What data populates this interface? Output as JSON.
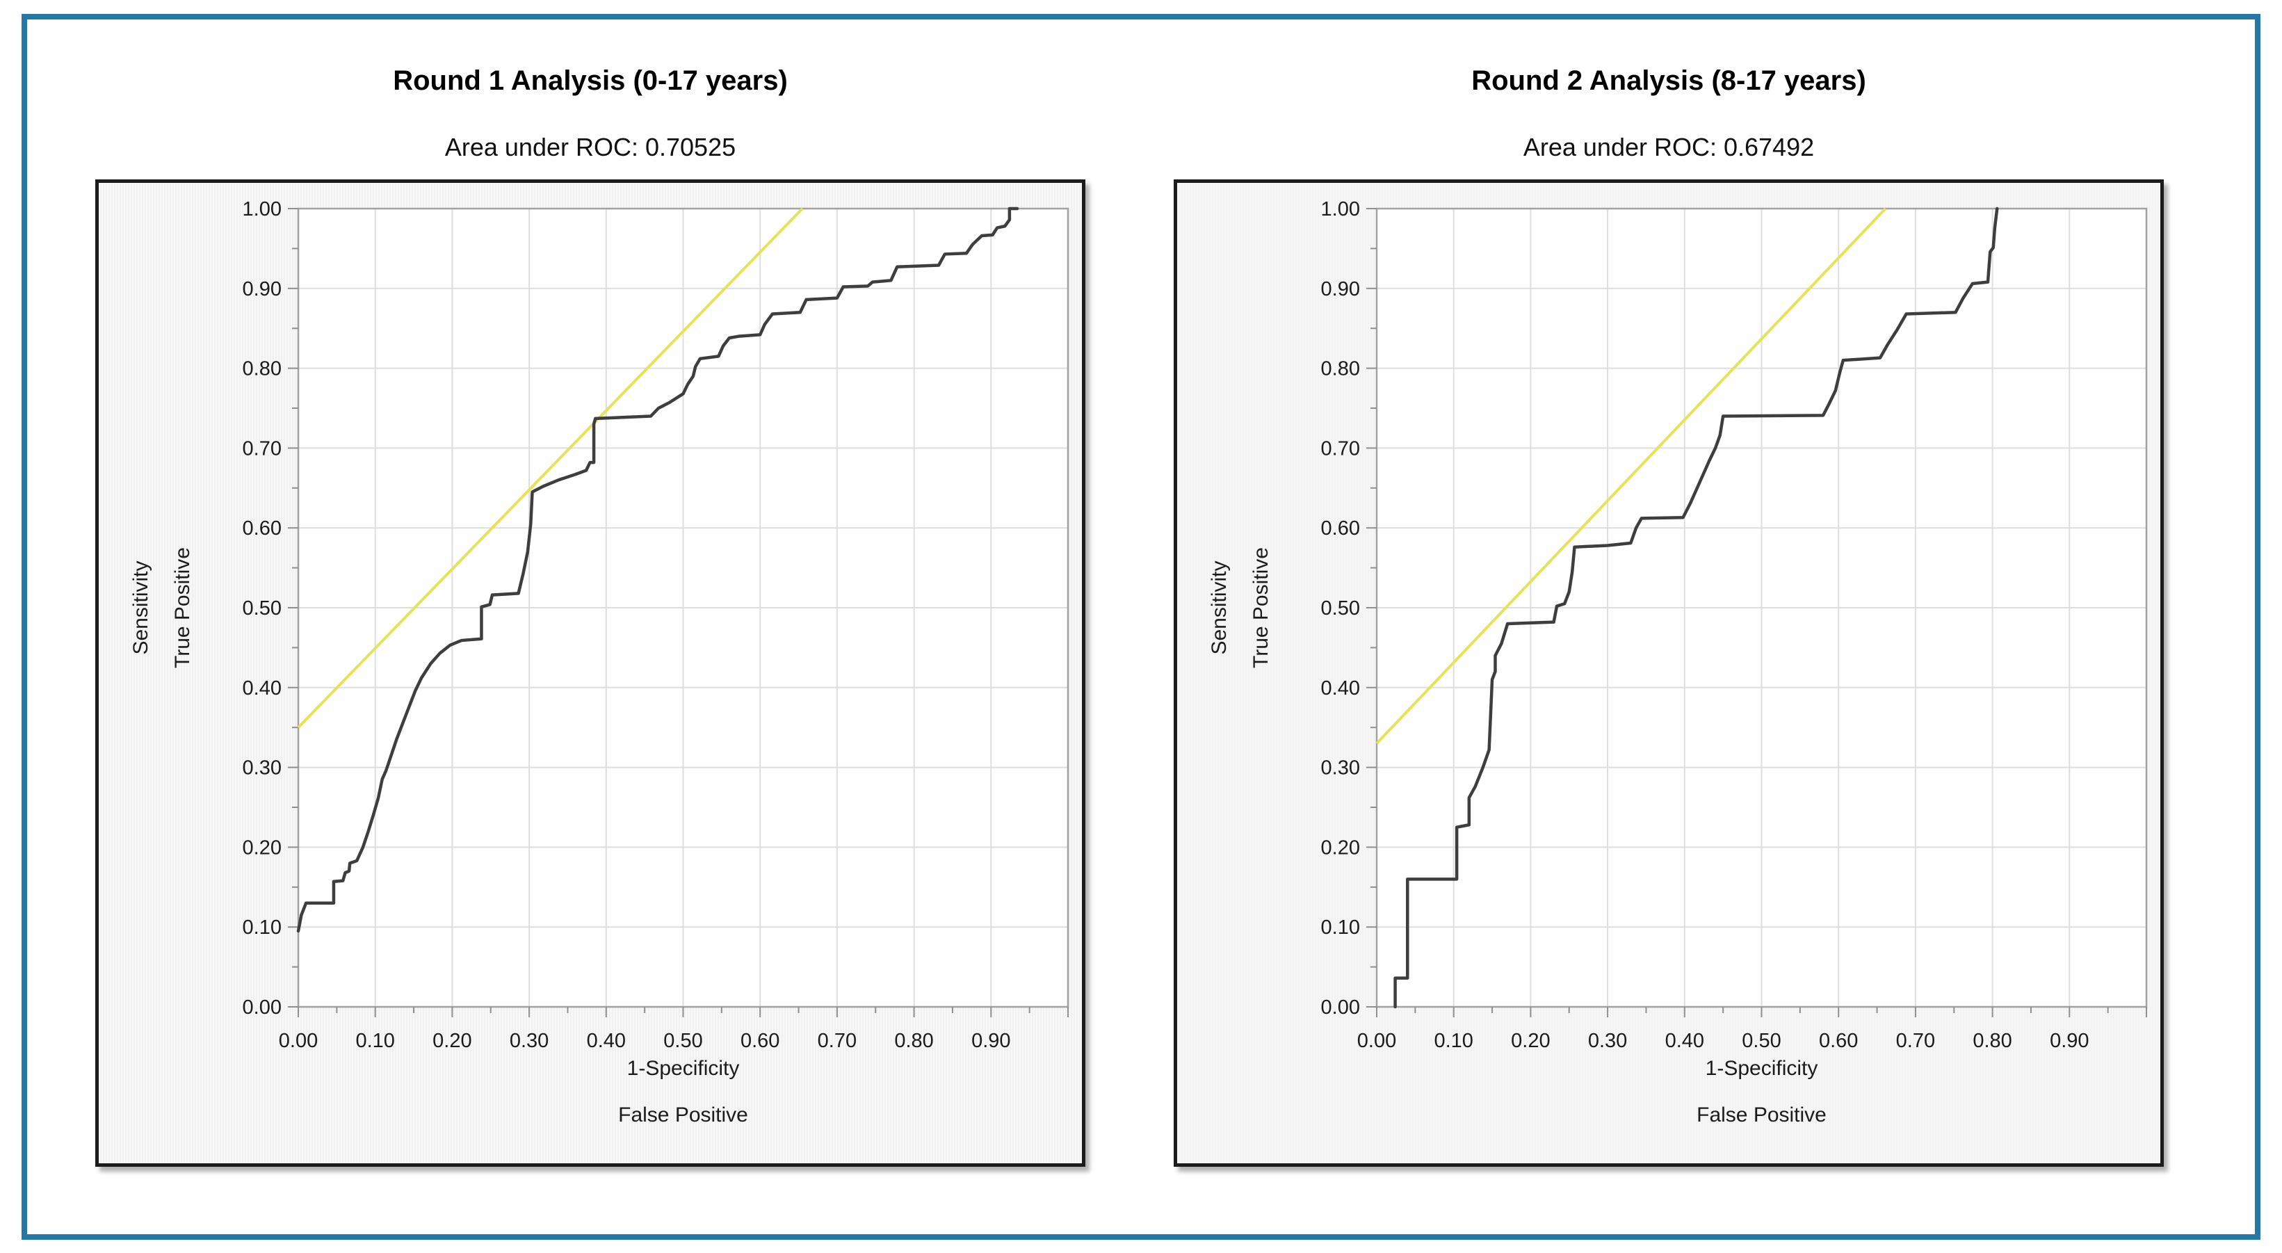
{
  "page": {
    "background": "#ffffff",
    "border_color": "#2577a5",
    "panel_border_color": "#1c1c1c",
    "panel_background": "#f1f1f1",
    "plot_background": "#ffffff",
    "grid_color": "#dedede",
    "frame_color": "#a2a2a2",
    "tick_color": "#8f8f8f",
    "text_color": "#1b1b1b"
  },
  "chart_data": [
    {
      "type": "line",
      "title": "Round 1 Analysis (0-17 years)",
      "subtitle": "Area under ROC: 0.70525",
      "area_under_roc": 0.70525,
      "xlabel_lines": [
        "1-Specificity",
        "False Positive"
      ],
      "ylabel_lines": [
        "Sensitivity",
        "True Positive"
      ],
      "xlim": [
        0,
        1.0
      ],
      "ylim": [
        0,
        1.0
      ],
      "grid": true,
      "legend_position": "none",
      "xtick_labels": [
        "0.00",
        "0.10",
        "0.20",
        "0.30",
        "0.40",
        "0.50",
        "0.60",
        "0.70",
        "0.80",
        "0.90"
      ],
      "ytick_labels": [
        "0.00",
        "0.10",
        "0.20",
        "0.30",
        "0.40",
        "0.50",
        "0.60",
        "0.70",
        "0.80",
        "0.90",
        "1.00"
      ],
      "minor_tick_step": 0.05,
      "series": [
        {
          "name": "ROC curve",
          "color": "#3e3e3e",
          "width": 4.5,
          "points": [
            [
              0.0,
              0.095
            ],
            [
              0.004,
              0.115
            ],
            [
              0.01,
              0.13
            ],
            [
              0.046,
              0.13
            ],
            [
              0.046,
              0.157
            ],
            [
              0.058,
              0.158
            ],
            [
              0.061,
              0.168
            ],
            [
              0.066,
              0.17
            ],
            [
              0.067,
              0.18
            ],
            [
              0.076,
              0.183
            ],
            [
              0.084,
              0.2
            ],
            [
              0.091,
              0.22
            ],
            [
              0.098,
              0.242
            ],
            [
              0.104,
              0.262
            ],
            [
              0.109,
              0.285
            ],
            [
              0.114,
              0.296
            ],
            [
              0.121,
              0.316
            ],
            [
              0.128,
              0.336
            ],
            [
              0.136,
              0.356
            ],
            [
              0.144,
              0.376
            ],
            [
              0.152,
              0.396
            ],
            [
              0.16,
              0.412
            ],
            [
              0.172,
              0.43
            ],
            [
              0.184,
              0.443
            ],
            [
              0.197,
              0.453
            ],
            [
              0.212,
              0.459
            ],
            [
              0.238,
              0.461
            ],
            [
              0.238,
              0.501
            ],
            [
              0.249,
              0.504
            ],
            [
              0.252,
              0.516
            ],
            [
              0.286,
              0.518
            ],
            [
              0.292,
              0.542
            ],
            [
              0.298,
              0.57
            ],
            [
              0.302,
              0.605
            ],
            [
              0.304,
              0.645
            ],
            [
              0.318,
              0.652
            ],
            [
              0.338,
              0.66
            ],
            [
              0.36,
              0.667
            ],
            [
              0.374,
              0.672
            ],
            [
              0.379,
              0.682
            ],
            [
              0.384,
              0.682
            ],
            [
              0.384,
              0.73
            ],
            [
              0.386,
              0.737
            ],
            [
              0.458,
              0.74
            ],
            [
              0.468,
              0.75
            ],
            [
              0.482,
              0.757
            ],
            [
              0.5,
              0.768
            ],
            [
              0.506,
              0.78
            ],
            [
              0.513,
              0.79
            ],
            [
              0.516,
              0.802
            ],
            [
              0.522,
              0.812
            ],
            [
              0.546,
              0.815
            ],
            [
              0.552,
              0.828
            ],
            [
              0.56,
              0.838
            ],
            [
              0.572,
              0.84
            ],
            [
              0.6,
              0.842
            ],
            [
              0.606,
              0.855
            ],
            [
              0.616,
              0.868
            ],
            [
              0.652,
              0.87
            ],
            [
              0.66,
              0.886
            ],
            [
              0.7,
              0.888
            ],
            [
              0.708,
              0.902
            ],
            [
              0.74,
              0.903
            ],
            [
              0.746,
              0.908
            ],
            [
              0.77,
              0.91
            ],
            [
              0.778,
              0.927
            ],
            [
              0.832,
              0.929
            ],
            [
              0.84,
              0.943
            ],
            [
              0.868,
              0.944
            ],
            [
              0.876,
              0.955
            ],
            [
              0.888,
              0.966
            ],
            [
              0.902,
              0.967
            ],
            [
              0.908,
              0.976
            ],
            [
              0.918,
              0.978
            ],
            [
              0.924,
              0.986
            ],
            [
              0.924,
              1.0
            ],
            [
              0.934,
              1.0
            ]
          ]
        },
        {
          "name": "reference line",
          "color": "#e7e257",
          "width": 4,
          "points": [
            [
              0,
              0.35
            ],
            [
              0.655,
              1.0
            ]
          ]
        }
      ]
    },
    {
      "type": "line",
      "title": "Round 2 Analysis (8-17 years)",
      "subtitle": "Area under ROC: 0.67492",
      "area_under_roc": 0.67492,
      "xlabel_lines": [
        "1-Specificity",
        "False Positive"
      ],
      "ylabel_lines": [
        "Sensitivity",
        "True Positive"
      ],
      "xlim": [
        0,
        1.0
      ],
      "ylim": [
        0,
        1.0
      ],
      "grid": true,
      "legend_position": "none",
      "xtick_labels": [
        "0.00",
        "0.10",
        "0.20",
        "0.30",
        "0.40",
        "0.50",
        "0.60",
        "0.70",
        "0.80",
        "0.90"
      ],
      "ytick_labels": [
        "0.00",
        "0.10",
        "0.20",
        "0.30",
        "0.40",
        "0.50",
        "0.60",
        "0.70",
        "0.80",
        "0.90",
        "1.00"
      ],
      "minor_tick_step": 0.05,
      "series": [
        {
          "name": "ROC curve",
          "color": "#3e3e3e",
          "width": 4.5,
          "points": [
            [
              0.024,
              0.0
            ],
            [
              0.024,
              0.036
            ],
            [
              0.04,
              0.036
            ],
            [
              0.04,
              0.16
            ],
            [
              0.104,
              0.16
            ],
            [
              0.104,
              0.225
            ],
            [
              0.12,
              0.228
            ],
            [
              0.12,
              0.262
            ],
            [
              0.128,
              0.276
            ],
            [
              0.138,
              0.3
            ],
            [
              0.146,
              0.322
            ],
            [
              0.15,
              0.41
            ],
            [
              0.154,
              0.42
            ],
            [
              0.154,
              0.44
            ],
            [
              0.162,
              0.455
            ],
            [
              0.17,
              0.48
            ],
            [
              0.23,
              0.482
            ],
            [
              0.234,
              0.502
            ],
            [
              0.244,
              0.505
            ],
            [
              0.25,
              0.52
            ],
            [
              0.254,
              0.545
            ],
            [
              0.257,
              0.576
            ],
            [
              0.3,
              0.578
            ],
            [
              0.33,
              0.581
            ],
            [
              0.337,
              0.6
            ],
            [
              0.344,
              0.612
            ],
            [
              0.398,
              0.613
            ],
            [
              0.408,
              0.632
            ],
            [
              0.42,
              0.658
            ],
            [
              0.432,
              0.684
            ],
            [
              0.44,
              0.7
            ],
            [
              0.446,
              0.716
            ],
            [
              0.45,
              0.74
            ],
            [
              0.58,
              0.741
            ],
            [
              0.588,
              0.756
            ],
            [
              0.596,
              0.772
            ],
            [
              0.602,
              0.796
            ],
            [
              0.606,
              0.81
            ],
            [
              0.654,
              0.813
            ],
            [
              0.664,
              0.83
            ],
            [
              0.676,
              0.848
            ],
            [
              0.688,
              0.868
            ],
            [
              0.752,
              0.87
            ],
            [
              0.762,
              0.888
            ],
            [
              0.774,
              0.906
            ],
            [
              0.794,
              0.908
            ],
            [
              0.797,
              0.946
            ],
            [
              0.801,
              0.951
            ],
            [
              0.803,
              0.976
            ],
            [
              0.806,
              1.0
            ]
          ]
        },
        {
          "name": "reference line",
          "color": "#e7e257",
          "width": 4,
          "points": [
            [
              0,
              0.33
            ],
            [
              0.661,
              1.0
            ]
          ]
        }
      ]
    }
  ]
}
